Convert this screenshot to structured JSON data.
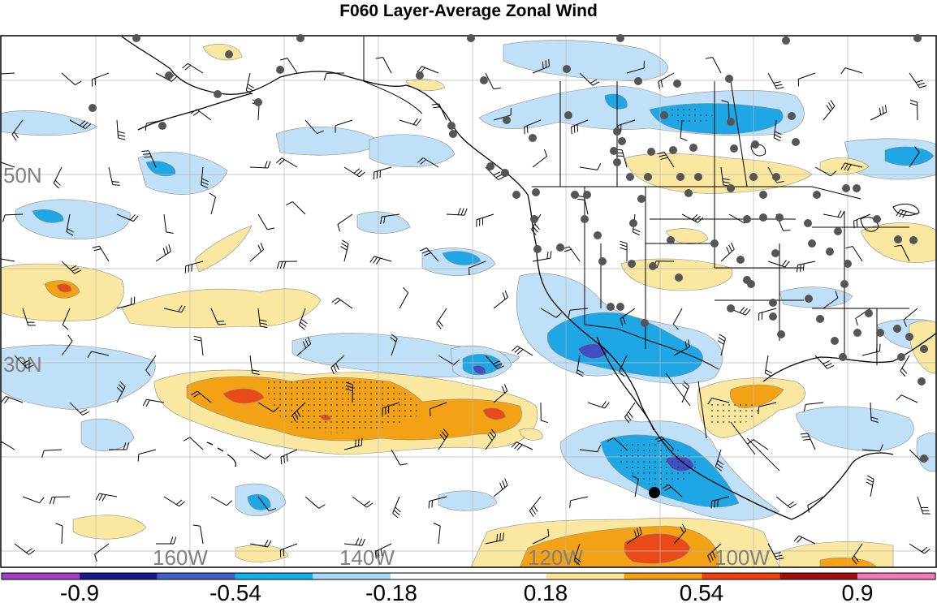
{
  "title": "F060 Layer-Average Zonal Wind",
  "lat_labels": [
    "50N",
    "30N"
  ],
  "lon_labels": [
    "160W",
    "140W",
    "120W",
    "100W"
  ],
  "colorbar": {
    "colors": [
      "#a040c8",
      "#1a1a8a",
      "#4060c8",
      "#10b0e8",
      "#a8d8f4",
      "#ffffff",
      "#ffffff",
      "#fce694",
      "#f4a010",
      "#f04010",
      "#a01010",
      "#f07ab8"
    ],
    "tick_labels": [
      "-0.9",
      "-0.54",
      "-0.18",
      "0.18",
      "0.54",
      "0.9"
    ]
  },
  "palette": {
    "light_blue": "#bfe0f7",
    "blue": "#1ea7e4",
    "dark_blue": "#3f4fc4",
    "light_yellow": "#fbe8a0",
    "orange": "#f2a214",
    "red": "#ea4a18",
    "station": "#555555",
    "coast": "#000000",
    "grid": "#b8b8b8"
  }
}
